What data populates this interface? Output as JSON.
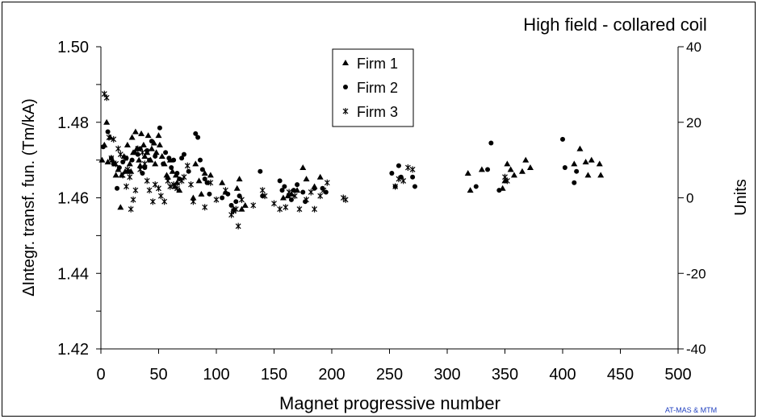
{
  "chart_data": {
    "type": "scatter",
    "title": "High field - collared coil",
    "xlabel": "Magnet progressive number",
    "ylabel": "ΔIntegr. transf. fun. (Tm/kA)",
    "y2label": "Units",
    "credit": "AT-MAS & MTM",
    "xlim": [
      0,
      500
    ],
    "ylim": [
      1.42,
      1.5
    ],
    "y2lim": [
      -40,
      40
    ],
    "x_ticks": [
      "0",
      "50",
      "100",
      "150",
      "200",
      "250",
      "300",
      "350",
      "400",
      "450",
      "500"
    ],
    "y_ticks": [
      "1.42",
      "1.44",
      "1.46",
      "1.48",
      "1.50"
    ],
    "y2_ticks": [
      "-40",
      "-20",
      "0",
      "20",
      "40"
    ],
    "grid": false,
    "legend_position": "top-center",
    "series": [
      {
        "name": "Firm 1",
        "marker": "triangle",
        "points": [
          [
            1,
            1.47
          ],
          [
            3,
            1.474
          ],
          [
            5,
            1.48
          ],
          [
            6,
            1.4695
          ],
          [
            8,
            1.476
          ],
          [
            10,
            1.47
          ],
          [
            12,
            1.469
          ],
          [
            13,
            1.466
          ],
          [
            15,
            1.4675
          ],
          [
            17,
            1.4575
          ],
          [
            18,
            1.466
          ],
          [
            20,
            1.471
          ],
          [
            21,
            1.467
          ],
          [
            23,
            1.474
          ],
          [
            25,
            1.469
          ],
          [
            26,
            1.467
          ],
          [
            27,
            1.476
          ],
          [
            28,
            1.472
          ],
          [
            30,
            1.4775
          ],
          [
            31,
            1.473
          ],
          [
            33,
            1.47
          ],
          [
            34,
            1.4685
          ],
          [
            35,
            1.477
          ],
          [
            37,
            1.474
          ],
          [
            38,
            1.471
          ],
          [
            40,
            1.472
          ],
          [
            41,
            1.4765
          ],
          [
            43,
            1.47
          ],
          [
            44,
            1.473
          ],
          [
            46,
            1.4745
          ],
          [
            47,
            1.469
          ],
          [
            48,
            1.472
          ],
          [
            50,
            1.4765
          ],
          [
            51,
            1.474
          ],
          [
            53,
            1.471
          ],
          [
            55,
            1.469
          ],
          [
            57,
            1.466
          ],
          [
            58,
            1.4655
          ],
          [
            60,
            1.47
          ],
          [
            62,
            1.467
          ],
          [
            64,
            1.463
          ],
          [
            65,
            1.466
          ],
          [
            66,
            1.464
          ],
          [
            68,
            1.462
          ],
          [
            80,
            1.46
          ],
          [
            82,
            1.469
          ],
          [
            85,
            1.4645
          ],
          [
            87,
            1.461
          ],
          [
            90,
            1.4665
          ],
          [
            95,
            1.466
          ],
          [
            105,
            1.464
          ],
          [
            108,
            1.4615
          ],
          [
            115,
            1.457
          ],
          [
            118,
            1.4625
          ],
          [
            120,
            1.465
          ],
          [
            122,
            1.457
          ],
          [
            125,
            1.458
          ],
          [
            158,
            1.46
          ],
          [
            162,
            1.4605
          ],
          [
            165,
            1.461
          ],
          [
            170,
            1.462
          ],
          [
            175,
            1.468
          ],
          [
            178,
            1.465
          ],
          [
            185,
            1.463
          ],
          [
            190,
            1.4655
          ],
          [
            318,
            1.4665
          ],
          [
            320,
            1.462
          ],
          [
            330,
            1.4675
          ],
          [
            348,
            1.4625
          ],
          [
            350,
            1.4645
          ],
          [
            352,
            1.469
          ],
          [
            355,
            1.4675
          ],
          [
            358,
            1.466
          ],
          [
            365,
            1.467
          ],
          [
            368,
            1.47
          ],
          [
            372,
            1.468
          ],
          [
            410,
            1.469
          ],
          [
            415,
            1.473
          ],
          [
            420,
            1.4695
          ],
          [
            422,
            1.466
          ],
          [
            425,
            1.47
          ],
          [
            432,
            1.469
          ],
          [
            433,
            1.466
          ]
        ]
      },
      {
        "name": "Firm 2",
        "marker": "circle",
        "points": [
          [
            2,
            1.4735
          ],
          [
            6,
            1.4775
          ],
          [
            9,
            1.4705
          ],
          [
            11,
            1.469
          ],
          [
            14,
            1.4625
          ],
          [
            16,
            1.468
          ],
          [
            19,
            1.4695
          ],
          [
            22,
            1.4705
          ],
          [
            24,
            1.467
          ],
          [
            27,
            1.47
          ],
          [
            29,
            1.472
          ],
          [
            32,
            1.4715
          ],
          [
            34,
            1.473
          ],
          [
            36,
            1.4665
          ],
          [
            38,
            1.468
          ],
          [
            40,
            1.4725
          ],
          [
            42,
            1.47
          ],
          [
            44,
            1.475
          ],
          [
            47,
            1.471
          ],
          [
            51,
            1.4785
          ],
          [
            54,
            1.469
          ],
          [
            56,
            1.472
          ],
          [
            59,
            1.4705
          ],
          [
            61,
            1.468
          ],
          [
            63,
            1.47
          ],
          [
            66,
            1.4665
          ],
          [
            68,
            1.465
          ],
          [
            70,
            1.4705
          ],
          [
            72,
            1.4715
          ],
          [
            76,
            1.467
          ],
          [
            82,
            1.477
          ],
          [
            84,
            1.476
          ],
          [
            86,
            1.47
          ],
          [
            88,
            1.4675
          ],
          [
            90,
            1.465
          ],
          [
            92,
            1.464
          ],
          [
            94,
            1.461
          ],
          [
            105,
            1.46
          ],
          [
            110,
            1.461
          ],
          [
            113,
            1.458
          ],
          [
            117,
            1.459
          ],
          [
            120,
            1.4605
          ],
          [
            138,
            1.467
          ],
          [
            140,
            1.4605
          ],
          [
            155,
            1.4645
          ],
          [
            157,
            1.462
          ],
          [
            159,
            1.463
          ],
          [
            165,
            1.4595
          ],
          [
            167,
            1.462
          ],
          [
            170,
            1.4635
          ],
          [
            175,
            1.4615
          ],
          [
            177,
            1.459
          ],
          [
            185,
            1.4625
          ],
          [
            192,
            1.4625
          ],
          [
            195,
            1.4615
          ],
          [
            252,
            1.4665
          ],
          [
            255,
            1.463
          ],
          [
            258,
            1.4685
          ],
          [
            260,
            1.4655
          ],
          [
            270,
            1.4655
          ],
          [
            272,
            1.463
          ],
          [
            325,
            1.463
          ],
          [
            335,
            1.4675
          ],
          [
            338,
            1.4745
          ],
          [
            345,
            1.462
          ],
          [
            400,
            1.4755
          ],
          [
            402,
            1.468
          ],
          [
            410,
            1.464
          ],
          [
            412,
            1.467
          ]
        ]
      },
      {
        "name": "Firm 3",
        "marker": "star",
        "points": [
          [
            3,
            1.4875
          ],
          [
            5,
            1.4865
          ],
          [
            7,
            1.476
          ],
          [
            9,
            1.4705
          ],
          [
            11,
            1.4755
          ],
          [
            13,
            1.469
          ],
          [
            15,
            1.473
          ],
          [
            17,
            1.4715
          ],
          [
            19,
            1.466
          ],
          [
            21,
            1.4705
          ],
          [
            22,
            1.463
          ],
          [
            23,
            1.4675
          ],
          [
            25,
            1.4655
          ],
          [
            26,
            1.457
          ],
          [
            28,
            1.4595
          ],
          [
            30,
            1.462
          ],
          [
            32,
            1.473
          ],
          [
            34,
            1.4675
          ],
          [
            36,
            1.472
          ],
          [
            38,
            1.469
          ],
          [
            40,
            1.4645
          ],
          [
            42,
            1.462
          ],
          [
            45,
            1.459
          ],
          [
            47,
            1.4635
          ],
          [
            50,
            1.4625
          ],
          [
            52,
            1.4605
          ],
          [
            55,
            1.459
          ],
          [
            58,
            1.4645
          ],
          [
            60,
            1.463
          ],
          [
            63,
            1.4635
          ],
          [
            66,
            1.4625
          ],
          [
            70,
            1.4645
          ],
          [
            72,
            1.4655
          ],
          [
            75,
            1.4685
          ],
          [
            78,
            1.4635
          ],
          [
            80,
            1.459
          ],
          [
            90,
            1.4575
          ],
          [
            95,
            1.464
          ],
          [
            100,
            1.4595
          ],
          [
            108,
            1.462
          ],
          [
            113,
            1.4555
          ],
          [
            115,
            1.4565
          ],
          [
            117,
            1.457
          ],
          [
            119,
            1.4525
          ],
          [
            122,
            1.4595
          ],
          [
            132,
            1.458
          ],
          [
            140,
            1.462
          ],
          [
            142,
            1.4605
          ],
          [
            150,
            1.4585
          ],
          [
            155,
            1.457
          ],
          [
            160,
            1.4575
          ],
          [
            163,
            1.4615
          ],
          [
            168,
            1.4605
          ],
          [
            172,
            1.457
          ],
          [
            178,
            1.4595
          ],
          [
            182,
            1.4615
          ],
          [
            185,
            1.457
          ],
          [
            190,
            1.4605
          ],
          [
            193,
            1.462
          ],
          [
            196,
            1.464
          ],
          [
            210,
            1.46
          ],
          [
            212,
            1.4595
          ],
          [
            255,
            1.463
          ],
          [
            258,
            1.465
          ],
          [
            262,
            1.4645
          ],
          [
            266,
            1.468
          ],
          [
            270,
            1.4675
          ],
          [
            350,
            1.4655
          ],
          [
            352,
            1.4645
          ]
        ]
      }
    ]
  }
}
